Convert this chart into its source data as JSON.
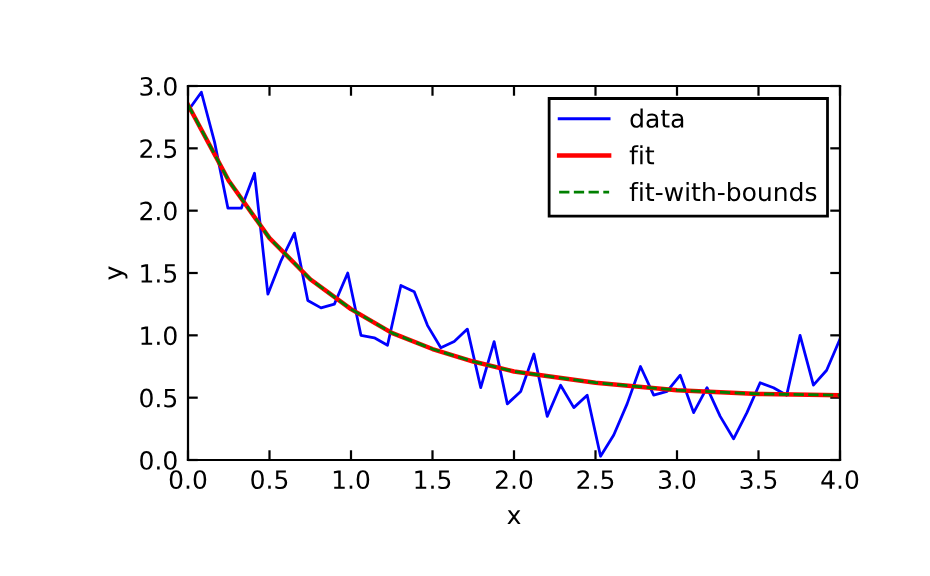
{
  "chart_data": {
    "type": "line",
    "xlabel": "x",
    "ylabel": "y",
    "xlim": [
      0,
      4
    ],
    "ylim": [
      0,
      3
    ],
    "xticks": [
      {
        "value": 0,
        "label": "0.0"
      },
      {
        "value": 0.5,
        "label": "0.5"
      },
      {
        "value": 1,
        "label": "1.0"
      },
      {
        "value": 1.5,
        "label": "1.5"
      },
      {
        "value": 2,
        "label": "2.0"
      },
      {
        "value": 2.5,
        "label": "2.5"
      },
      {
        "value": 3,
        "label": "3.0"
      },
      {
        "value": 3.5,
        "label": "3.5"
      },
      {
        "value": 4,
        "label": "4.0"
      }
    ],
    "yticks": [
      {
        "value": 0,
        "label": "0.0"
      },
      {
        "value": 0.5,
        "label": "0.5"
      },
      {
        "value": 1,
        "label": "1.0"
      },
      {
        "value": 1.5,
        "label": "1.5"
      },
      {
        "value": 2,
        "label": "2.0"
      },
      {
        "value": 2.5,
        "label": "2.5"
      },
      {
        "value": 3,
        "label": "3.0"
      }
    ],
    "grid": false,
    "legend": "top right",
    "series": [
      {
        "name": "data",
        "color": "#0000ff",
        "line_style": "solid",
        "x": [
          0,
          0.082,
          0.163,
          0.245,
          0.327,
          0.408,
          0.49,
          0.571,
          0.653,
          0.735,
          0.816,
          0.898,
          0.98,
          1.061,
          1.143,
          1.224,
          1.306,
          1.388,
          1.469,
          1.551,
          1.633,
          1.714,
          1.796,
          1.878,
          1.959,
          2.041,
          2.122,
          2.204,
          2.286,
          2.367,
          2.449,
          2.531,
          2.612,
          2.694,
          2.776,
          2.857,
          2.939,
          3.02,
          3.102,
          3.184,
          3.265,
          3.347,
          3.429,
          3.51,
          3.592,
          3.673,
          3.755,
          3.837,
          3.918,
          4.0
        ],
        "values": [
          2.8,
          2.95,
          2.55,
          2.02,
          2.02,
          2.3,
          1.33,
          1.6,
          1.82,
          1.28,
          1.22,
          1.25,
          1.5,
          1.0,
          0.98,
          0.92,
          1.4,
          1.35,
          1.08,
          0.9,
          0.95,
          1.05,
          0.58,
          0.95,
          0.45,
          0.55,
          0.85,
          0.35,
          0.6,
          0.42,
          0.52,
          0.03,
          0.2,
          0.45,
          0.75,
          0.52,
          0.55,
          0.68,
          0.38,
          0.58,
          0.35,
          0.17,
          0.38,
          0.62,
          0.58,
          0.52,
          1.0,
          0.6,
          0.72,
          0.97
        ]
      },
      {
        "name": "fit",
        "color": "#ff0000",
        "line_style": "solid",
        "x": [
          0,
          0.25,
          0.5,
          0.75,
          1,
          1.25,
          1.5,
          1.75,
          2,
          2.5,
          3,
          3.5,
          4
        ],
        "values": [
          2.85,
          2.24,
          1.78,
          1.45,
          1.21,
          1.02,
          0.89,
          0.79,
          0.71,
          0.62,
          0.56,
          0.53,
          0.52
        ]
      },
      {
        "name": "fit-with-bounds",
        "color": "#008000",
        "line_style": "dashed",
        "x": [
          0,
          0.25,
          0.5,
          0.75,
          1,
          1.25,
          1.5,
          1.75,
          2,
          2.5,
          3,
          3.5,
          4
        ],
        "values": [
          2.85,
          2.24,
          1.78,
          1.45,
          1.21,
          1.02,
          0.89,
          0.79,
          0.71,
          0.62,
          0.56,
          0.53,
          0.52
        ]
      }
    ]
  }
}
